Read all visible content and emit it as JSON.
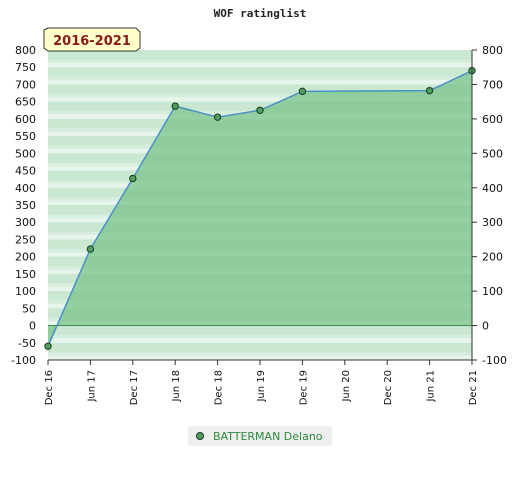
{
  "chart_data": {
    "type": "area",
    "title": "WOF ratinglist",
    "period_label": "2016-2021",
    "x": [
      "Dec 16",
      "Jun 17",
      "Dec 17",
      "Jun 18",
      "Dec 18",
      "Jun 19",
      "Dec 19",
      "Jun 20",
      "Dec 20",
      "Jun 21",
      "Dec 21"
    ],
    "series": [
      {
        "name": "BATTERMAN Delano",
        "points": [
          {
            "x": "Dec 16",
            "y": -60
          },
          {
            "x": "Jun 17",
            "y": 222
          },
          {
            "x": "Dec 17",
            "y": 427
          },
          {
            "x": "Jun 18",
            "y": 637
          },
          {
            "x": "Dec 18",
            "y": 605
          },
          {
            "x": "Jun 19",
            "y": 625
          },
          {
            "x": "Dec 19",
            "y": 680
          },
          {
            "x": "Jun 21",
            "y": 682
          },
          {
            "x": "Dec 21",
            "y": 740
          }
        ]
      }
    ],
    "ylim": [
      -100,
      800
    ],
    "left_ticks": [
      -100,
      -50,
      0,
      50,
      100,
      150,
      200,
      250,
      300,
      350,
      400,
      450,
      500,
      550,
      600,
      650,
      700,
      750,
      800
    ],
    "right_ticks": [
      -100,
      0,
      100,
      200,
      300,
      400,
      500,
      600,
      700,
      800
    ],
    "legend_position": "bottom",
    "colors": {
      "line": "#4a90c8",
      "fill": "#79c38a",
      "marker": "#4f9e5d",
      "band_dark": "#bfe2c8",
      "band_light": "#e8f5ec",
      "badge_bg": "#ffffcc",
      "badge_text": "#8a1a1a",
      "legend_text": "#2e8b3e",
      "legend_bg": "#eeeeee"
    }
  }
}
